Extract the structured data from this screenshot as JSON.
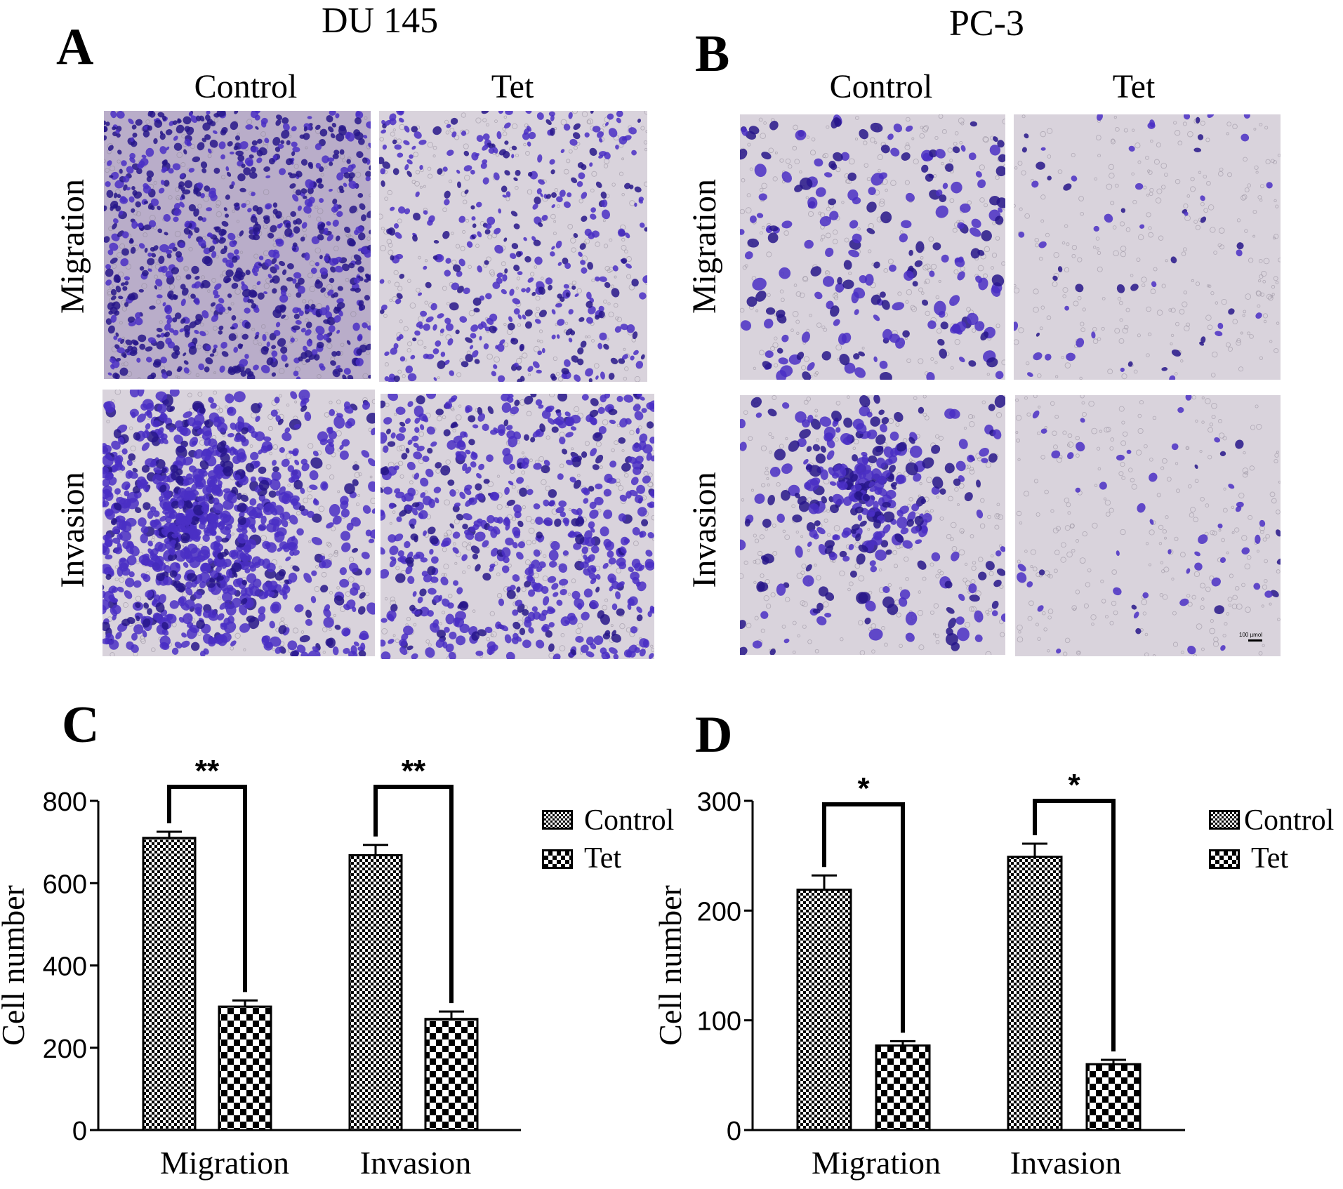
{
  "figure": {
    "panels": [
      {
        "letter": "A",
        "cell_line": "DU 145"
      },
      {
        "letter": "B",
        "cell_line": "PC-3"
      },
      {
        "letter": "C"
      },
      {
        "letter": "D"
      }
    ],
    "column_labels": [
      "Control",
      "Tet"
    ],
    "row_labels": [
      "Migration",
      "Invasion"
    ],
    "scale_bar_label": "100 µmol",
    "colors": {
      "background": "#ffffff",
      "stain": "#4a2fc4",
      "stain_dark": "#27168a",
      "field": "#d9d3dc",
      "field_dense": "#b9adc9"
    }
  },
  "chart_data": [
    {
      "type": "bar",
      "panel": "C",
      "categories": [
        "Migration",
        "Invasion"
      ],
      "series": [
        {
          "name": "Control",
          "values": [
            710,
            668
          ],
          "errors": [
            15,
            25
          ],
          "pattern": "fine-checker"
        },
        {
          "name": "Tet",
          "values": [
            300,
            270
          ],
          "errors": [
            15,
            18
          ],
          "pattern": "coarse-checker"
        }
      ],
      "ylabel": "Cell number",
      "ylim": [
        0,
        800
      ],
      "yticks": [
        0,
        200,
        400,
        600,
        800
      ],
      "significance": [
        {
          "category": "Migration",
          "label": "**"
        },
        {
          "category": "Invasion",
          "label": "**"
        }
      ],
      "legend": [
        "Control",
        "Tet"
      ],
      "legend_position": "right"
    },
    {
      "type": "bar",
      "panel": "D",
      "categories": [
        "Migration",
        "Invasion"
      ],
      "series": [
        {
          "name": "Control",
          "values": [
            219,
            249
          ],
          "errors": [
            13,
            12
          ],
          "pattern": "fine-checker"
        },
        {
          "name": "Tet",
          "values": [
            77,
            60
          ],
          "errors": [
            4,
            4
          ],
          "pattern": "coarse-checker"
        }
      ],
      "ylabel": "Cell number",
      "ylim": [
        0,
        300
      ],
      "yticks": [
        0,
        100,
        200,
        300
      ],
      "significance": [
        {
          "category": "Migration",
          "label": "*"
        },
        {
          "category": "Invasion",
          "label": "*"
        }
      ],
      "legend": [
        "Control",
        "Tet"
      ],
      "legend_position": "right"
    }
  ]
}
